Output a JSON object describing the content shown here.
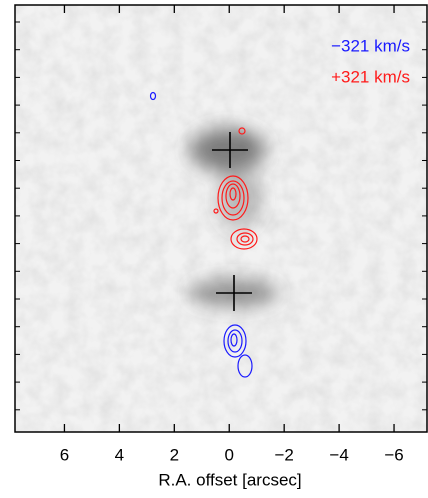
{
  "chart_data": {
    "type": "image",
    "xlabel": "R.A. offset [arcsec]",
    "xlim": [
      7.8,
      -7.2
    ],
    "xticks": [
      6,
      4,
      2,
      0,
      {
        "value": -2,
        "label": "−2"
      },
      {
        "value": -4,
        "label": "−4"
      },
      {
        "value": -6,
        "label": "−6"
      }
    ],
    "series": [
      {
        "name": "−321 km/s",
        "color": "#1a1aff"
      },
      {
        "name": "+321 km/s",
        "color": "#ff1a1a"
      }
    ],
    "legend": "upper right"
  }
}
